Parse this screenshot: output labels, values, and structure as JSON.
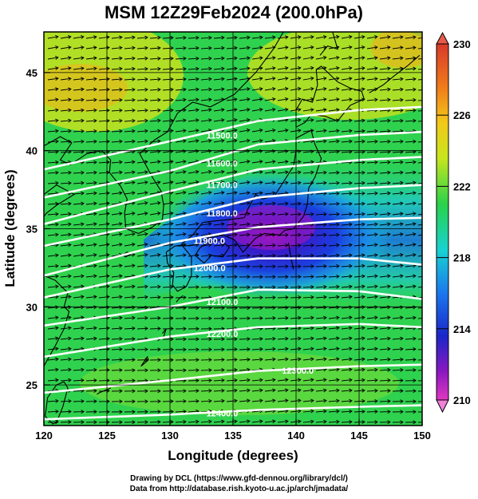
{
  "title": "MSM 12Z29Feb2024 (200.0hPa)",
  "x_axis": {
    "label": "Longitude (degrees)",
    "range": [
      120,
      150
    ],
    "ticks": [
      120,
      125,
      130,
      135,
      140,
      145,
      150
    ],
    "tick_labels": [
      "120",
      "125",
      "130",
      "135",
      "140",
      "145",
      "150"
    ]
  },
  "y_axis": {
    "label": "Latitude  (degrees)",
    "range": [
      22.4,
      47.6
    ],
    "ticks": [
      25,
      30,
      35,
      40,
      45
    ],
    "tick_labels": [
      "25",
      "30",
      "35",
      "40",
      "45"
    ]
  },
  "colorbar": {
    "range": [
      210,
      230
    ],
    "tick_labels": [
      "230",
      "226",
      "222",
      "218",
      "214",
      "210"
    ],
    "tick_values": [
      230,
      226,
      222,
      218,
      214,
      210
    ]
  },
  "contours": [
    {
      "value": 11500,
      "label": "11500.0"
    },
    {
      "value": 11600,
      "label": "11600.0"
    },
    {
      "value": 11700,
      "label": "11700.0"
    },
    {
      "value": 11800,
      "label": "11800.0"
    },
    {
      "value": 11900,
      "label": "11900.0"
    },
    {
      "value": 12000,
      "label": "12000.0"
    },
    {
      "value": 12100,
      "label": "12100.0"
    },
    {
      "value": 12200,
      "label": "12200.0"
    },
    {
      "value": 12300,
      "label": "12300.0"
    },
    {
      "value": 12400,
      "label": "12400.0"
    }
  ],
  "credits": {
    "line1": "Drawing by DCL (https://www.gfd-dennou.org/library/dcl/)",
    "line2": "Data from http://database.rish.kyoto-u.ac.jp/arch/jmadata/"
  },
  "colors": {
    "contour": "#ffffff",
    "vector": "#000000",
    "coast": "#000000"
  }
}
